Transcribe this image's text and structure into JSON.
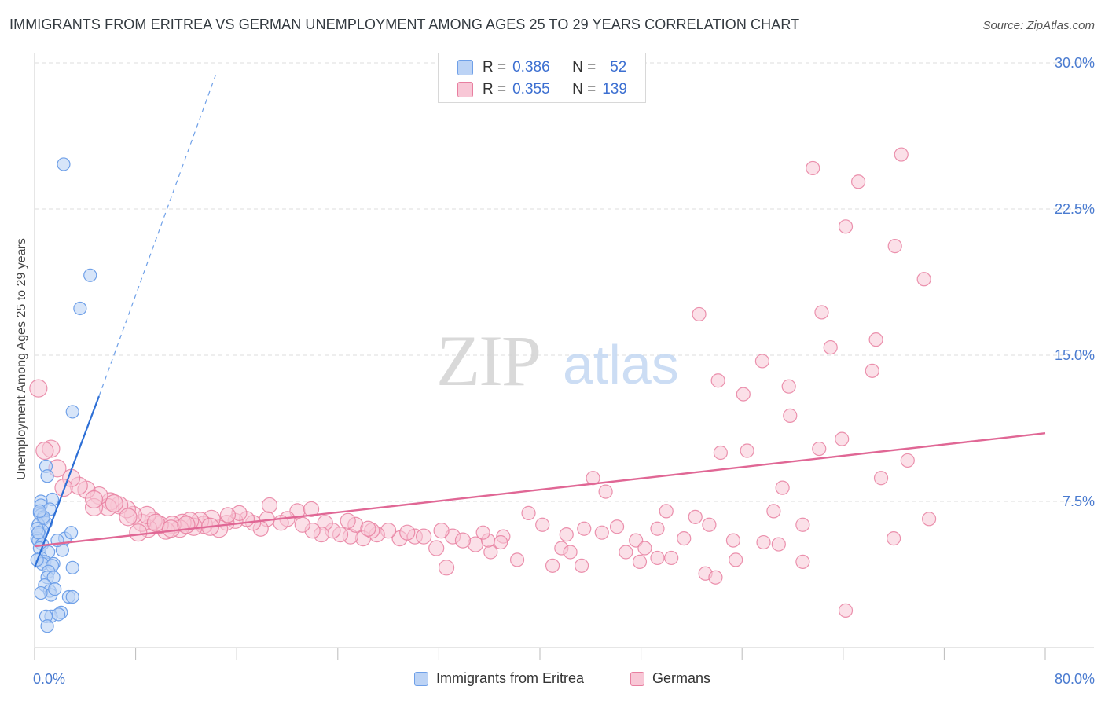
{
  "title": "IMMIGRANTS FROM ERITREA VS GERMAN UNEMPLOYMENT AMONG AGES 25 TO 29 YEARS CORRELATION CHART",
  "source": "Source: ZipAtlas.com",
  "watermark": {
    "zip": "ZIP",
    "atlas": "atlas"
  },
  "colors": {
    "blue": "#6fa0e8",
    "blue_fill": "#bcd3f5",
    "blue_line": "#2d6fd6",
    "pink": "#e87fa0",
    "pink_fill": "#f8c7d6",
    "pink_line": "#e06795",
    "axis_label": "#4a7bd0",
    "grid": "#dddddd"
  },
  "legend": {
    "r_label": "R =",
    "n_label": "N =",
    "items": [
      {
        "name": "Immigrants from Eritrea",
        "r": "0.386",
        "n": "52",
        "color": "blue"
      },
      {
        "name": "Germans",
        "r": "0.355",
        "n": "139",
        "color": "pink"
      }
    ]
  },
  "chart_data": {
    "type": "scatter",
    "title": "IMMIGRANTS FROM ERITREA VS GERMAN UNEMPLOYMENT AMONG AGES 25 TO 29 YEARS CORRELATION CHART",
    "xlabel": "",
    "ylabel": "Unemployment Among Ages 25 to 29 years",
    "xlim": [
      0,
      80
    ],
    "ylim": [
      0,
      30
    ],
    "x_tick_labels": [
      "0.0%",
      "80.0%"
    ],
    "y_ticks": [
      7.5,
      15.0,
      22.5,
      30.0
    ],
    "y_tick_labels": [
      "7.5%",
      "15.0%",
      "22.5%",
      "30.0%"
    ],
    "grid": true,
    "legend_position": "top-center",
    "series": [
      {
        "name": "Immigrants from Eritrea",
        "color": "#6fa0e8",
        "trend": {
          "x0": 0.0,
          "y0": 4.1,
          "x1": 5.1,
          "y1": 12.9,
          "dashed_to": {
            "x": 14.4,
            "y": 29.5
          }
        },
        "points": [
          [
            2.3,
            24.8
          ],
          [
            4.4,
            19.1
          ],
          [
            3.6,
            17.4
          ],
          [
            3.0,
            12.1
          ],
          [
            0.9,
            9.3
          ],
          [
            1.0,
            8.8
          ],
          [
            1.4,
            7.6
          ],
          [
            0.5,
            7.5
          ],
          [
            0.5,
            7.3
          ],
          [
            1.2,
            7.1
          ],
          [
            0.4,
            6.9
          ],
          [
            0.5,
            6.8
          ],
          [
            0.7,
            6.6
          ],
          [
            0.9,
            6.4
          ],
          [
            0.3,
            6.3
          ],
          [
            0.6,
            6.0
          ],
          [
            0.4,
            5.8
          ],
          [
            0.2,
            5.6
          ],
          [
            0.3,
            5.5
          ],
          [
            0.6,
            5.3
          ],
          [
            0.4,
            5.1
          ],
          [
            2.4,
            5.6
          ],
          [
            2.2,
            5.0
          ],
          [
            1.1,
            4.9
          ],
          [
            0.5,
            4.6
          ],
          [
            0.8,
            4.4
          ],
          [
            0.6,
            4.3
          ],
          [
            1.5,
            4.3
          ],
          [
            1.4,
            4.2
          ],
          [
            3.0,
            4.1
          ],
          [
            1.1,
            3.9
          ],
          [
            1.0,
            3.6
          ],
          [
            1.5,
            3.6
          ],
          [
            0.8,
            3.2
          ],
          [
            1.2,
            2.9
          ],
          [
            1.3,
            2.7
          ],
          [
            0.5,
            2.8
          ],
          [
            2.7,
            2.6
          ],
          [
            3.0,
            2.6
          ],
          [
            2.1,
            1.8
          ],
          [
            1.3,
            1.6
          ],
          [
            0.9,
            1.6
          ],
          [
            1.9,
            1.7
          ],
          [
            1.0,
            1.1
          ],
          [
            0.2,
            6.1
          ],
          [
            0.3,
            5.9
          ],
          [
            0.7,
            6.7
          ],
          [
            0.4,
            7.0
          ],
          [
            1.8,
            5.5
          ],
          [
            0.2,
            4.5
          ],
          [
            1.6,
            3.0
          ],
          [
            2.9,
            5.9
          ]
        ]
      },
      {
        "name": "Germans",
        "color": "#e87fa0",
        "trend": {
          "x0": 0.0,
          "y0": 5.2,
          "x1": 80.0,
          "y1": 11.0
        },
        "points": [
          [
            68.6,
            25.3
          ],
          [
            61.6,
            24.6
          ],
          [
            65.2,
            23.9
          ],
          [
            64.2,
            21.6
          ],
          [
            68.1,
            20.6
          ],
          [
            70.4,
            18.9
          ],
          [
            62.3,
            17.2
          ],
          [
            52.6,
            17.1
          ],
          [
            66.6,
            15.8
          ],
          [
            63.0,
            15.4
          ],
          [
            57.6,
            14.7
          ],
          [
            66.3,
            14.2
          ],
          [
            54.1,
            13.7
          ],
          [
            59.7,
            13.4
          ],
          [
            56.1,
            13.0
          ],
          [
            59.8,
            11.9
          ],
          [
            63.9,
            10.7
          ],
          [
            62.1,
            10.2
          ],
          [
            56.4,
            10.1
          ],
          [
            54.3,
            10.0
          ],
          [
            69.1,
            9.6
          ],
          [
            67.0,
            8.7
          ],
          [
            44.2,
            8.7
          ],
          [
            59.2,
            8.2
          ],
          [
            45.2,
            8.0
          ],
          [
            58.5,
            7.0
          ],
          [
            50.0,
            7.0
          ],
          [
            39.1,
            6.9
          ],
          [
            52.3,
            6.7
          ],
          [
            70.8,
            6.6
          ],
          [
            60.8,
            6.3
          ],
          [
            53.4,
            6.3
          ],
          [
            40.2,
            6.3
          ],
          [
            46.1,
            6.2
          ],
          [
            49.3,
            6.1
          ],
          [
            43.5,
            6.1
          ],
          [
            44.9,
            5.9
          ],
          [
            42.1,
            5.8
          ],
          [
            51.4,
            5.6
          ],
          [
            37.1,
            5.7
          ],
          [
            55.3,
            5.5
          ],
          [
            57.7,
            5.4
          ],
          [
            58.9,
            5.3
          ],
          [
            68.0,
            5.6
          ],
          [
            47.6,
            5.5
          ],
          [
            48.3,
            5.1
          ],
          [
            46.8,
            4.9
          ],
          [
            41.7,
            5.1
          ],
          [
            42.4,
            4.9
          ],
          [
            49.3,
            4.6
          ],
          [
            38.2,
            4.5
          ],
          [
            50.4,
            4.6
          ],
          [
            47.9,
            4.4
          ],
          [
            55.5,
            4.5
          ],
          [
            60.8,
            4.4
          ],
          [
            41.0,
            4.2
          ],
          [
            43.3,
            4.2
          ],
          [
            53.1,
            3.8
          ],
          [
            53.9,
            3.6
          ],
          [
            32.6,
            4.1
          ],
          [
            64.2,
            1.9
          ],
          [
            36.1,
            4.9
          ],
          [
            34.9,
            5.3
          ],
          [
            35.9,
            5.5
          ],
          [
            36.9,
            5.4
          ],
          [
            33.1,
            5.7
          ],
          [
            33.9,
            5.5
          ],
          [
            35.5,
            5.9
          ],
          [
            32.2,
            6.0
          ],
          [
            31.8,
            5.1
          ],
          [
            30.1,
            5.7
          ],
          [
            30.8,
            5.7
          ],
          [
            28.9,
            5.6
          ],
          [
            29.5,
            5.9
          ],
          [
            28.0,
            6.0
          ],
          [
            27.1,
            5.8
          ],
          [
            26.0,
            5.6
          ],
          [
            26.7,
            6.0
          ],
          [
            25.0,
            5.7
          ],
          [
            24.2,
            5.8
          ],
          [
            25.4,
            6.3
          ],
          [
            23.6,
            6.0
          ],
          [
            23.0,
            6.4
          ],
          [
            22.7,
            5.8
          ],
          [
            22.0,
            6.0
          ],
          [
            21.2,
            6.3
          ],
          [
            20.8,
            7.0
          ],
          [
            21.9,
            7.1
          ],
          [
            20.0,
            6.6
          ],
          [
            19.5,
            6.4
          ],
          [
            18.4,
            6.6
          ],
          [
            18.6,
            7.3
          ],
          [
            17.9,
            6.1
          ],
          [
            17.3,
            6.4
          ],
          [
            16.8,
            6.6
          ],
          [
            15.9,
            6.5
          ],
          [
            16.2,
            6.9
          ],
          [
            15.2,
            6.4
          ],
          [
            14.6,
            6.1
          ],
          [
            15.3,
            6.8
          ],
          [
            14.0,
            6.6
          ],
          [
            13.4,
            6.3
          ],
          [
            13.1,
            6.5
          ],
          [
            12.6,
            6.2
          ],
          [
            12.3,
            6.5
          ],
          [
            11.7,
            6.4
          ],
          [
            11.5,
            6.1
          ],
          [
            10.9,
            6.3
          ],
          [
            10.4,
            6.0
          ],
          [
            9.9,
            6.3
          ],
          [
            9.4,
            6.5
          ],
          [
            9.0,
            6.1
          ],
          [
            8.5,
            6.4
          ],
          [
            8.2,
            5.9
          ],
          [
            8.9,
            6.8
          ],
          [
            7.8,
            6.8
          ],
          [
            7.3,
            7.1
          ],
          [
            6.7,
            7.3
          ],
          [
            6.0,
            7.5
          ],
          [
            5.8,
            7.2
          ],
          [
            5.1,
            7.8
          ],
          [
            4.7,
            7.2
          ],
          [
            4.1,
            8.1
          ],
          [
            3.5,
            8.3
          ],
          [
            2.9,
            8.7
          ],
          [
            2.3,
            8.2
          ],
          [
            1.8,
            9.2
          ],
          [
            1.3,
            10.2
          ],
          [
            0.8,
            10.1
          ],
          [
            0.3,
            13.3
          ],
          [
            4.7,
            7.6
          ],
          [
            6.3,
            7.4
          ],
          [
            7.4,
            6.7
          ],
          [
            9.6,
            6.4
          ],
          [
            10.8,
            6.1
          ],
          [
            12.0,
            6.3
          ],
          [
            13.9,
            6.2
          ],
          [
            24.8,
            6.5
          ],
          [
            26.4,
            6.1
          ]
        ]
      }
    ]
  }
}
